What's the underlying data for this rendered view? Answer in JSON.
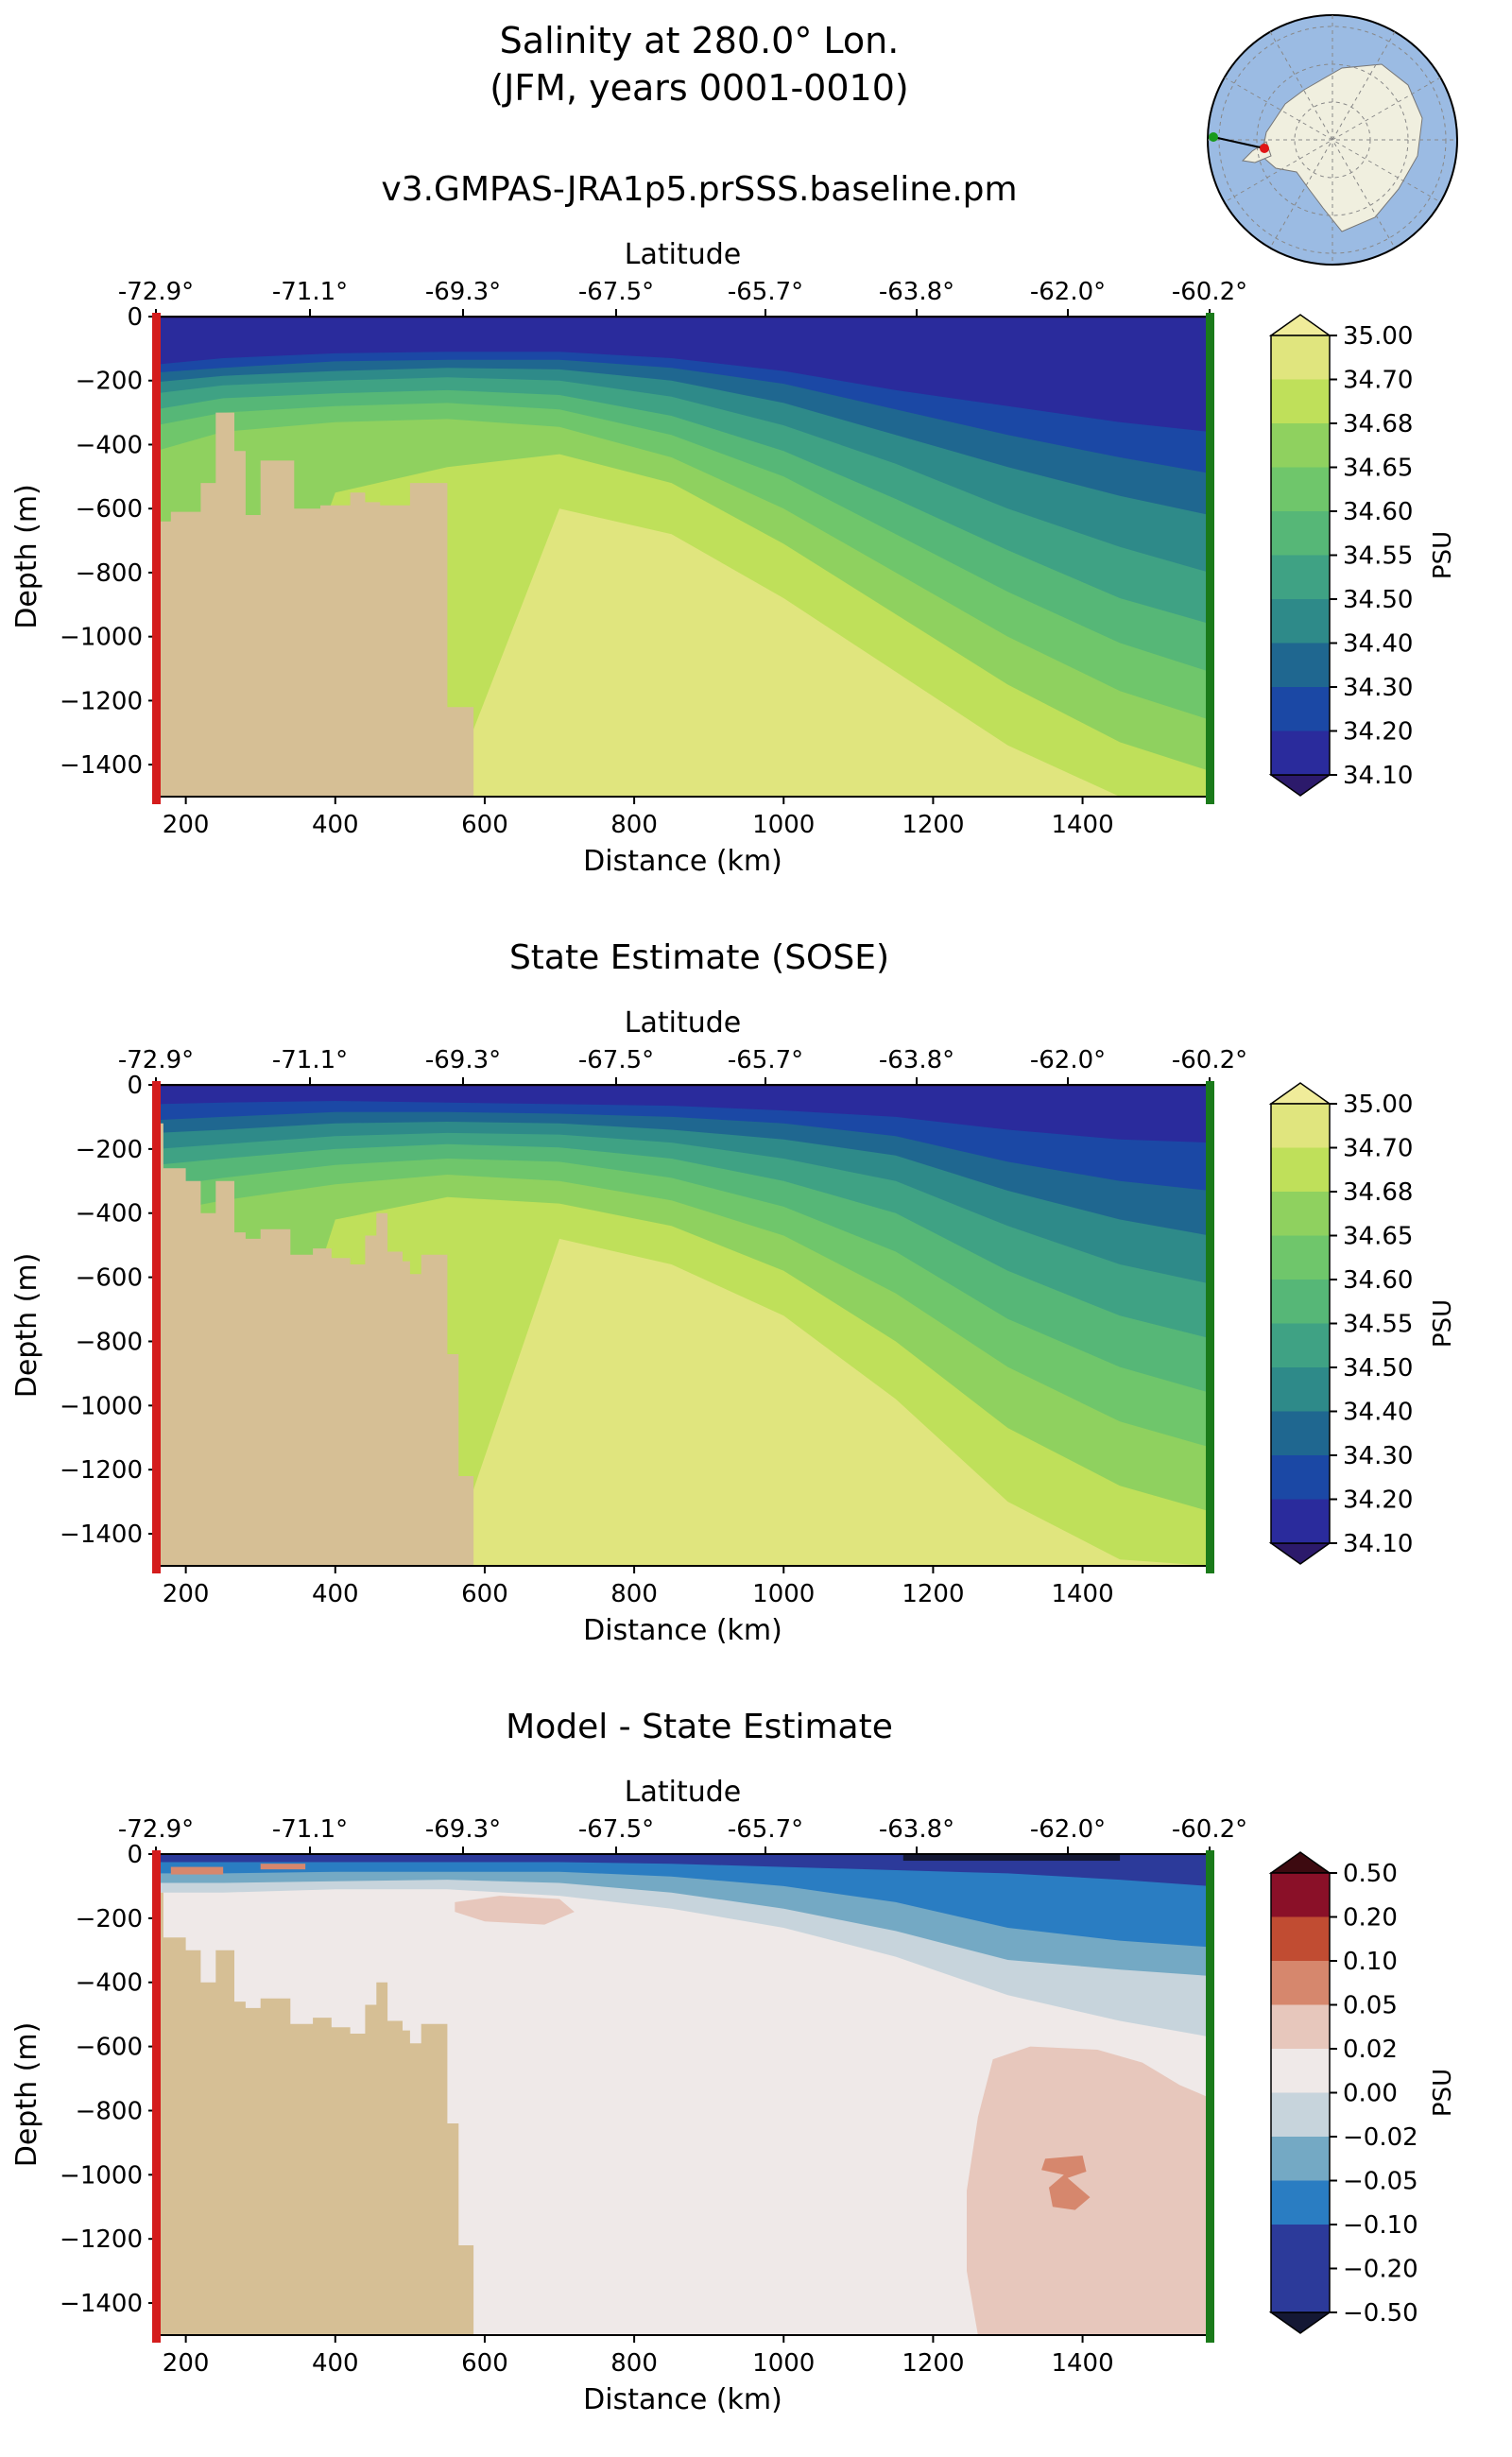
{
  "header": {
    "title_line1": "Salinity at 280.0° Lon.",
    "title_line2": "(JFM, years 0001-0010)",
    "inset_map": "antarctic-polar-inset-map"
  },
  "colors": {
    "land": "#d6bf95",
    "left_edge": "#d41c1c",
    "right_edge": "#1a7a1a",
    "salinity_levels": [
      "#2c1a6b",
      "#2a2b9c",
      "#1b48a5",
      "#1f6790",
      "#2e8a89",
      "#3fa284",
      "#56b777",
      "#6fc66b",
      "#8fd15f",
      "#bfe05a",
      "#e0e57e",
      "#f0ec9a"
    ],
    "diff_levels": [
      "#141834",
      "#2c3a9a",
      "#2a7dc2",
      "#74a9c4",
      "#c7d4dc",
      "#efe9e8",
      "#e7c7bc",
      "#d6876d",
      "#c14c32",
      "#8a1028",
      "#3d0a10"
    ]
  },
  "chart_data": [
    {
      "type": "heatmap",
      "title": "v3.GMPAS-JRA1p5.prSSS.baseline.pm",
      "xlabel": "Distance (km)",
      "ylabel": "Depth (m)",
      "top_xlabel": "Latitude",
      "xlim": [
        160,
        1570
      ],
      "ylim": [
        -1500,
        0
      ],
      "x_ticks": [
        "200",
        "400",
        "600",
        "800",
        "1000",
        "1200",
        "1400"
      ],
      "y_ticks": [
        "0",
        "−200",
        "−400",
        "−600",
        "−800",
        "−1000",
        "−1200",
        "−1400"
      ],
      "top_ticks": [
        "-72.9°",
        "-71.1°",
        "-69.3°",
        "-67.5°",
        "-65.7°",
        "-63.8°",
        "-62.0°",
        "-60.2°"
      ],
      "colorbar_label": "PSU",
      "colorbar_ticks": [
        "35.00",
        "34.70",
        "34.68",
        "34.65",
        "34.60",
        "34.55",
        "34.50",
        "34.40",
        "34.30",
        "34.20",
        "34.10"
      ],
      "isoline_depths_at_x": {
        "x": [
          160,
          400,
          700,
          1000,
          1300,
          1570
        ],
        "upper_isolines": [
          [
            -120,
            -100,
            -90,
            -110,
            -180,
            -220
          ],
          [
            -180,
            -150,
            -120,
            -180,
            -260,
            -350
          ],
          [
            -250,
            -220,
            -200,
            -320,
            -480,
            -580
          ]
        ]
      }
    },
    {
      "type": "heatmap",
      "title": "State Estimate (SOSE)",
      "xlabel": "Distance (km)",
      "ylabel": "Depth (m)",
      "top_xlabel": "Latitude",
      "xlim": [
        160,
        1570
      ],
      "ylim": [
        -1500,
        0
      ],
      "x_ticks": [
        "200",
        "400",
        "600",
        "800",
        "1000",
        "1200",
        "1400"
      ],
      "y_ticks": [
        "0",
        "−200",
        "−400",
        "−600",
        "−800",
        "−1000",
        "−1200",
        "−1400"
      ],
      "top_ticks": [
        "-72.9°",
        "-71.1°",
        "-69.3°",
        "-67.5°",
        "-65.7°",
        "-63.8°",
        "-62.0°",
        "-60.2°"
      ],
      "colorbar_label": "PSU",
      "colorbar_ticks": [
        "35.00",
        "34.70",
        "34.68",
        "34.65",
        "34.60",
        "34.55",
        "34.50",
        "34.40",
        "34.30",
        "34.20",
        "34.10"
      ]
    },
    {
      "type": "heatmap",
      "title": "Model - State Estimate",
      "xlabel": "Distance (km)",
      "ylabel": "Depth (m)",
      "top_xlabel": "Latitude",
      "xlim": [
        160,
        1570
      ],
      "ylim": [
        -1500,
        0
      ],
      "x_ticks": [
        "200",
        "400",
        "600",
        "800",
        "1000",
        "1200",
        "1400"
      ],
      "y_ticks": [
        "0",
        "−200",
        "−400",
        "−600",
        "−800",
        "−1000",
        "−1200",
        "−1400"
      ],
      "top_ticks": [
        "-72.9°",
        "-71.1°",
        "-69.3°",
        "-67.5°",
        "-65.7°",
        "-63.8°",
        "-62.0°",
        "-60.2°"
      ],
      "colorbar_label": "PSU",
      "colorbar_ticks": [
        "0.50",
        "0.20",
        "0.10",
        "0.05",
        "0.02",
        "0.00",
        "−0.02",
        "−0.05",
        "−0.10",
        "−0.20",
        "−0.50"
      ]
    }
  ]
}
